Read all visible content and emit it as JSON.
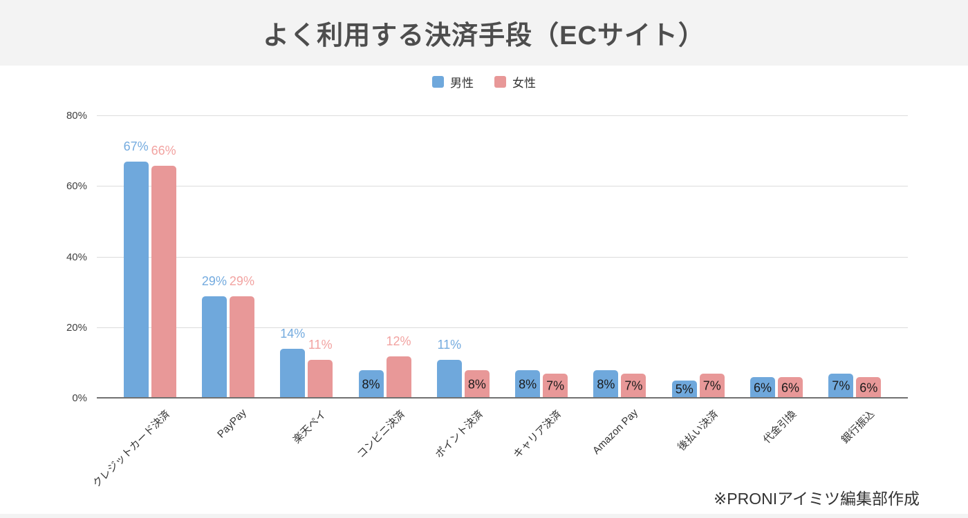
{
  "header": {
    "title": "よく利用する決済手段（ECサイト）",
    "background": "#f3f3f3"
  },
  "legend": [
    {
      "label": "男性",
      "color": "#6fa8dc"
    },
    {
      "label": "女性",
      "color": "#e89898"
    }
  ],
  "footer": {
    "note": "※PRONIアイミツ編集部作成"
  },
  "chart_data": {
    "type": "bar",
    "title": "よく利用する決済手段（ECサイト）",
    "categories": [
      "クレジットカード決済",
      "PayPay",
      "楽天ペイ",
      "コンビニ決済",
      "ポイント決済",
      "キャリア決済",
      "Amazon Pay",
      "後払い決済",
      "代金引換",
      "銀行振込"
    ],
    "series": [
      {
        "name": "男性",
        "color": "#6fa8dc",
        "label_color": "#74abdf",
        "values": [
          67,
          29,
          14,
          8,
          11,
          8,
          8,
          5,
          6,
          7
        ]
      },
      {
        "name": "女性",
        "color": "#e89898",
        "label_color": "#f2a3a1",
        "values": [
          66,
          29,
          11,
          12,
          8,
          7,
          7,
          7,
          6,
          6
        ]
      }
    ],
    "unit": "%",
    "xlabel": "",
    "ylabel": "",
    "ylim": [
      0,
      80
    ],
    "y_ticks": [
      "0%",
      "20%",
      "40%",
      "60%",
      "80%"
    ],
    "grid": true,
    "legend_position": "top",
    "label_rule": "value >= 11 labeled above bar in series color; value <= 8 labeled inside bar in black",
    "label_above_threshold": 11
  }
}
